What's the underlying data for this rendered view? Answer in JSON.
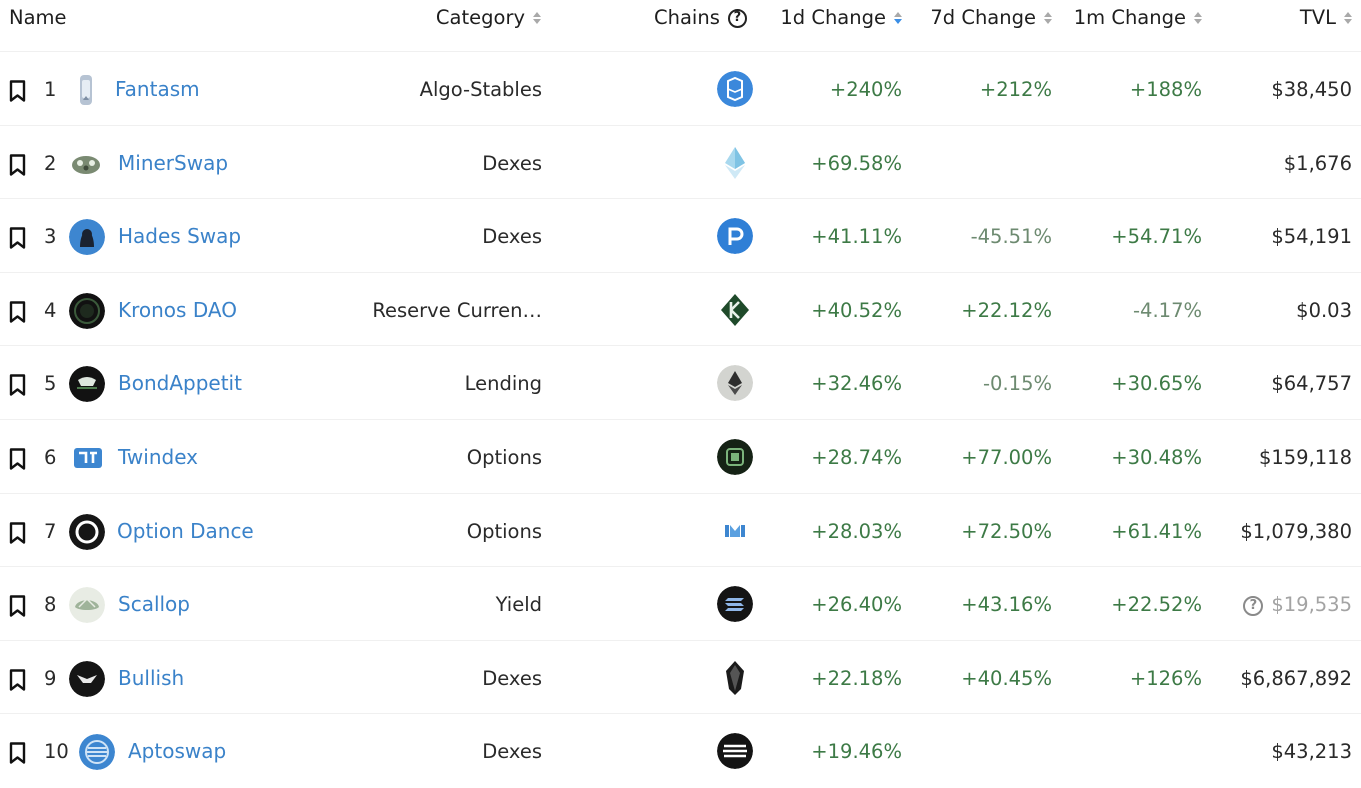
{
  "header": {
    "name": "Name",
    "category": "Category",
    "chains": "Chains",
    "chains_help": "?",
    "change_1d": "1d Change",
    "change_7d": "7d Change",
    "change_1m": "1m Change",
    "tvl": "TVL"
  },
  "rows": [
    {
      "rank": "1",
      "name": "Fantasm",
      "category": "Algo-Stables",
      "chain_icon": "fantom-icon",
      "change_1d": "+240%",
      "change_7d": "+212%",
      "change_1m": "+188%",
      "tvl": "$38,450"
    },
    {
      "rank": "2",
      "name": "MinerSwap",
      "category": "Dexes",
      "chain_icon": "ethereumpow-icon",
      "change_1d": "+69.58%",
      "change_7d": "",
      "change_1m": "",
      "tvl": "$1,676"
    },
    {
      "rank": "3",
      "name": "Hades Swap",
      "category": "Dexes",
      "chain_icon": "polis-icon",
      "change_1d": "+41.11%",
      "change_7d": "-45.51%",
      "change_1m": "+54.71%",
      "tvl": "$54,191"
    },
    {
      "rank": "4",
      "name": "Kronos DAO",
      "category": "Reserve Curren…",
      "chain_icon": "kava-icon",
      "change_1d": "+40.52%",
      "change_7d": "+22.12%",
      "change_1m": "-4.17%",
      "tvl": "$0.03"
    },
    {
      "rank": "5",
      "name": "BondAppetit",
      "category": "Lending",
      "chain_icon": "ethereum-icon",
      "change_1d": "+32.46%",
      "change_7d": "-0.15%",
      "change_1m": "+30.65%",
      "tvl": "$64,757"
    },
    {
      "rank": "6",
      "name": "Twindex",
      "category": "Options",
      "chain_icon": "rsk-icon",
      "change_1d": "+28.74%",
      "change_7d": "+77.00%",
      "change_1m": "+30.48%",
      "tvl": "$159,118"
    },
    {
      "rank": "7",
      "name": "Option Dance",
      "category": "Options",
      "chain_icon": "moonriver-icon",
      "change_1d": "+28.03%",
      "change_7d": "+72.50%",
      "change_1m": "+61.41%",
      "tvl": "$1,079,380"
    },
    {
      "rank": "8",
      "name": "Scallop",
      "category": "Yield",
      "chain_icon": "solana-icon",
      "change_1d": "+26.40%",
      "change_7d": "+43.16%",
      "change_1m": "+22.52%",
      "tvl": "$19,535",
      "tvl_flag": "?"
    },
    {
      "rank": "9",
      "name": "Bullish",
      "category": "Dexes",
      "chain_icon": "eos-icon",
      "change_1d": "+22.18%",
      "change_7d": "+40.45%",
      "change_1m": "+126%",
      "tvl": "$6,867,892"
    },
    {
      "rank": "10",
      "name": "Aptoswap",
      "category": "Dexes",
      "chain_icon": "aptos-icon",
      "change_1d": "+19.46%",
      "change_7d": "",
      "change_1m": "",
      "tvl": "$43,213"
    }
  ],
  "colors": {
    "link": "#3a82c9",
    "positive": "#3d7a46",
    "negative": "#6d8a70",
    "sort_active": "#3a8ee6"
  }
}
